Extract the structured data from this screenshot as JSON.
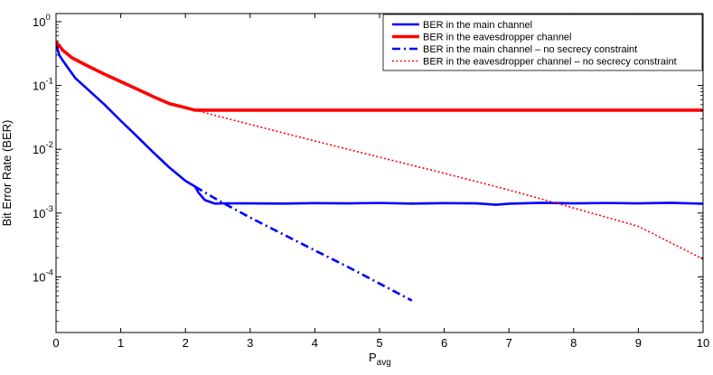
{
  "chart_data": {
    "type": "line",
    "xlabel": "P",
    "xlabel_sub": "avg",
    "ylabel": "Bit Error Rate (BER)",
    "xlim": [
      0,
      10
    ],
    "ylim": [
      1e-05,
      1
    ],
    "yscale": "log",
    "grid": false,
    "legend_position": "top-right",
    "x_ticks": [
      "0",
      "1",
      "2",
      "3",
      "4",
      "5",
      "6",
      "7",
      "8",
      "9",
      "10"
    ],
    "y_ticks": [
      {
        "base": "10",
        "exp": "0",
        "value": 1
      },
      {
        "base": "10",
        "exp": "-1",
        "value": 0.1
      },
      {
        "base": "10",
        "exp": "-2",
        "value": 0.01
      },
      {
        "base": "10",
        "exp": "-3",
        "value": 0.001
      },
      {
        "base": "10",
        "exp": "-4",
        "value": 0.0001
      }
    ],
    "series": [
      {
        "name": "BER in the main channel",
        "color": "#0000ff",
        "style": "solid",
        "width": 2.6,
        "x": [
          0,
          0.05,
          0.1,
          0.2,
          0.3,
          0.5,
          0.75,
          1.0,
          1.25,
          1.5,
          1.75,
          2.0,
          2.15,
          2.2,
          2.3,
          2.45,
          2.6,
          3.0,
          3.5,
          4.0,
          4.5,
          5.0,
          5.5,
          6.0,
          6.5,
          6.8,
          7.0,
          7.5,
          8.0,
          8.5,
          9.0,
          9.5,
          10.0
        ],
        "y": [
          0.45,
          0.3,
          0.25,
          0.18,
          0.13,
          0.085,
          0.05,
          0.028,
          0.016,
          0.009,
          0.0052,
          0.0032,
          0.0026,
          0.0021,
          0.0016,
          0.00141,
          0.00142,
          0.00142,
          0.00141,
          0.00143,
          0.00142,
          0.00144,
          0.00141,
          0.00143,
          0.00142,
          0.00135,
          0.0014,
          0.00145,
          0.00142,
          0.00144,
          0.00142,
          0.00145,
          0.0014
        ]
      },
      {
        "name": "BER in the eavesdropper channel",
        "color": "#ff0000",
        "style": "solid",
        "width": 3.6,
        "x": [
          0,
          0.05,
          0.1,
          0.25,
          0.5,
          0.75,
          1.0,
          1.25,
          1.5,
          1.75,
          2.0,
          2.15,
          2.5,
          3.0,
          4.0,
          5.0,
          6.0,
          7.0,
          8.0,
          9.0,
          10.0
        ],
        "y": [
          0.48,
          0.42,
          0.36,
          0.27,
          0.2,
          0.15,
          0.115,
          0.088,
          0.067,
          0.052,
          0.045,
          0.041,
          0.041,
          0.041,
          0.041,
          0.041,
          0.041,
          0.041,
          0.041,
          0.041,
          0.041
        ]
      },
      {
        "name": "BER in the main channel – no secrecy constraint",
        "color": "#0000ff",
        "style": "dashdot",
        "width": 2.6,
        "x": [
          2.15,
          2.5,
          3.0,
          3.5,
          4.0,
          4.5,
          5.0,
          5.5
        ],
        "y": [
          0.0026,
          0.0016,
          0.00085,
          0.00047,
          0.00026,
          0.000145,
          7.85e-05,
          4.25e-05
        ]
      },
      {
        "name": "BER in the eavesdropper channel – no secrecy constraint",
        "color": "#ff0000",
        "style": "dotted",
        "width": 1.6,
        "x": [
          2.15,
          3.0,
          4.0,
          5.0,
          6.0,
          7.0,
          8.0,
          9.0,
          10.0
        ],
        "y": [
          0.041,
          0.0245,
          0.0135,
          0.0075,
          0.0042,
          0.0023,
          0.0012,
          0.00062,
          0.00019
        ]
      }
    ]
  }
}
